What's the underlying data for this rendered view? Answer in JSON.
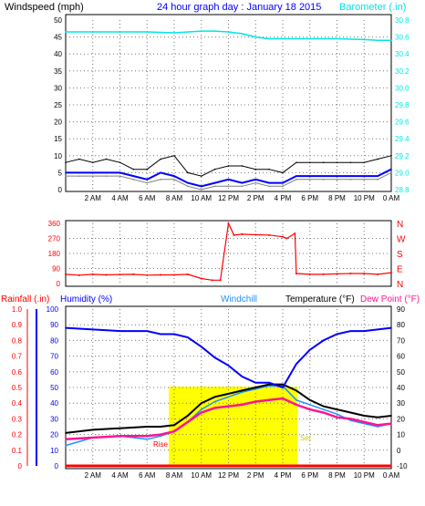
{
  "header": {
    "windspeed_label": "Windspeed (mph)",
    "title": "24 hour graph day : January 18 2015",
    "barometer_label": "Barometer (.in)"
  },
  "lower_header": {
    "rainfall_label": "Rainfall (.in)",
    "humidity_label": "Humidity (%)",
    "windchill_label": "Windchill",
    "temperature_label": "Temperature (°F)",
    "dewpoint_label": "Dew Point (°F)"
  },
  "sun_labels": {
    "rise": "Rise",
    "set": "Set"
  },
  "colors": {
    "wind_gust": "#000000",
    "wind_avg": "#0000ff",
    "wind_gray": "#808080",
    "barometer": "#00e5e5",
    "direction": "#ff0000",
    "humidity": "#0000ff",
    "windchill": "#1e90ff",
    "temperature": "#000000",
    "dewpoint": "#ff1493",
    "daylight": "#ffff00",
    "rain": "#ff0000",
    "grid": "#777777"
  },
  "chart_data": [
    {
      "type": "line",
      "title": "24 hour graph day : January 18 2015",
      "x_ticks": [
        "2 AM",
        "4 AM",
        "6 AM",
        "8 AM",
        "10 AM",
        "12 PM",
        "2 PM",
        "4 PM",
        "6 PM",
        "8 PM",
        "10 PM",
        "0 AM"
      ],
      "left_axis": {
        "label": "Windspeed (mph)",
        "range": [
          0,
          50
        ],
        "ticks": [
          "50",
          "45",
          "40",
          "35",
          "30",
          "25",
          "20",
          "15",
          "10",
          "5",
          "0"
        ]
      },
      "right_axis": {
        "label": "Barometer (.in)",
        "range": [
          28.8,
          30.8
        ],
        "ticks": [
          "30.8",
          "30.6",
          "30.4",
          "30.2",
          "30.0",
          "29.8",
          "29.6",
          "29.4",
          "29.2",
          "29.0",
          "28.8"
        ]
      },
      "series": [
        {
          "axis": "right",
          "x": [
            0,
            2,
            4,
            6,
            8,
            10,
            11,
            12,
            13,
            14,
            15,
            16,
            18,
            20,
            22,
            23,
            24
          ],
          "values": [
            30.66,
            30.66,
            30.66,
            30.66,
            30.65,
            30.67,
            30.67,
            30.66,
            30.64,
            30.6,
            30.58,
            30.58,
            30.58,
            30.58,
            30.57,
            30.56,
            30.56
          ]
        },
        {
          "axis": "left",
          "x": [
            0,
            1,
            2,
            3,
            4,
            5,
            6,
            7,
            8,
            9,
            10,
            11,
            12,
            13,
            14,
            15,
            16,
            17,
            18,
            19,
            20,
            21,
            22,
            23,
            24
          ],
          "values": [
            8,
            9,
            8,
            9,
            8,
            6,
            6,
            9,
            10,
            5,
            4,
            6,
            7,
            7,
            6,
            6,
            5,
            8,
            8,
            8,
            8,
            8,
            8,
            9,
            10
          ]
        },
        {
          "axis": "left",
          "x": [
            0,
            1,
            2,
            3,
            4,
            5,
            6,
            7,
            8,
            9,
            10,
            11,
            12,
            13,
            14,
            15,
            16,
            17,
            18,
            19,
            20,
            21,
            22,
            23,
            24
          ],
          "values": [
            5,
            5,
            5,
            5,
            5,
            4,
            3,
            5,
            4,
            2,
            1,
            2,
            3,
            2,
            3,
            2,
            2,
            4,
            4,
            4,
            4,
            4,
            4,
            4,
            6
          ]
        },
        {
          "axis": "left",
          "x": [
            0,
            1,
            2,
            3,
            4,
            5,
            6,
            7,
            8,
            9,
            10,
            11,
            12,
            13,
            14,
            15,
            16,
            17,
            18,
            19,
            20,
            21,
            22,
            23,
            24
          ],
          "values": [
            4,
            4,
            4,
            4,
            4,
            3,
            2,
            3,
            3,
            1,
            0,
            1,
            1,
            1,
            2,
            1,
            1,
            3,
            3,
            3,
            3,
            3,
            3,
            3,
            5
          ]
        }
      ]
    },
    {
      "type": "scatter",
      "y_ticks": [
        "360",
        "270",
        "180",
        "90",
        "0"
      ],
      "right_labels": [
        "N",
        "W",
        "S",
        "E",
        "N"
      ],
      "ylim": [
        0,
        360
      ],
      "x": [
        0,
        1,
        2,
        3,
        4,
        5,
        6,
        7,
        8,
        9,
        10,
        10.8,
        11.4,
        12,
        12.4,
        13,
        14,
        15,
        16,
        16.3,
        16.9,
        17,
        18,
        19,
        20,
        21,
        22,
        23,
        24
      ],
      "values": [
        55,
        50,
        55,
        52,
        54,
        55,
        50,
        52,
        52,
        55,
        30,
        20,
        20,
        360,
        290,
        295,
        292,
        290,
        280,
        270,
        300,
        60,
        55,
        55,
        58,
        60,
        60,
        55,
        65
      ]
    },
    {
      "type": "line",
      "left_axis": {
        "label": "Humidity (%)",
        "range": [
          0,
          100
        ],
        "ticks": [
          "100",
          "90",
          "80",
          "70",
          "60",
          "50",
          "40",
          "30",
          "20",
          "10",
          "0"
        ]
      },
      "rain_axis": {
        "label": "Rainfall (.in)",
        "range": [
          0,
          1.0
        ],
        "ticks": [
          "1.0",
          "0.9",
          "0.8",
          "0.7",
          "0.6",
          "0.5",
          "0.4",
          "0.3",
          "0.2",
          "0.1",
          "0"
        ]
      },
      "right_axis": {
        "label": "Temperature (°F)",
        "range": [
          -10,
          90
        ],
        "ticks": [
          "90",
          "80",
          "70",
          "60",
          "50",
          "40",
          "30",
          "20",
          "10",
          "0",
          "-10"
        ]
      },
      "series": [
        {
          "axis": "left",
          "x": [
            0,
            2,
            4,
            6,
            7,
            8,
            9,
            10,
            11,
            12,
            13,
            14,
            15,
            16,
            17,
            18,
            19,
            20,
            21,
            22,
            23,
            24
          ],
          "values": [
            88,
            87,
            86,
            86,
            84,
            84,
            82,
            76,
            69,
            64,
            57,
            53,
            53,
            50,
            65,
            74,
            80,
            84,
            86,
            86,
            87,
            88
          ]
        },
        {
          "axis": "right",
          "x": [
            0,
            2,
            4,
            6,
            7,
            8,
            9,
            10,
            11,
            12,
            13,
            14,
            15,
            16,
            17,
            18,
            19,
            20,
            21,
            22,
            23,
            24
          ],
          "values": [
            11,
            13,
            14,
            15,
            15,
            16,
            22,
            30,
            34,
            36,
            38,
            40,
            42,
            42,
            38,
            32,
            28,
            26,
            24,
            22,
            21,
            22
          ]
        },
        {
          "axis": "right",
          "x": [
            0,
            2,
            4,
            6,
            7,
            8,
            9,
            10,
            11,
            12,
            13,
            14,
            15,
            16,
            17,
            18,
            19,
            20,
            21,
            22,
            23,
            24
          ],
          "values": [
            3,
            8,
            9,
            7,
            9,
            12,
            18,
            26,
            31,
            34,
            37,
            39,
            41,
            41,
            32,
            29,
            26,
            23,
            19,
            17,
            15,
            17
          ]
        },
        {
          "axis": "right",
          "x": [
            0,
            2,
            4,
            6,
            7,
            8,
            9,
            10,
            11,
            12,
            13,
            14,
            15,
            16,
            17,
            18,
            19,
            20,
            21,
            22,
            23,
            24
          ],
          "values": [
            7,
            8,
            9,
            9,
            10,
            12,
            18,
            24,
            27,
            28,
            29,
            31,
            32,
            33,
            29,
            26,
            24,
            21,
            20,
            18,
            16,
            17
          ]
        },
        {
          "axis": "rain",
          "x": [
            0,
            24
          ],
          "values": [
            0,
            0
          ]
        }
      ],
      "daylight": {
        "start": 7.6,
        "end": 17.1,
        "fill": "#ffff00"
      }
    }
  ]
}
